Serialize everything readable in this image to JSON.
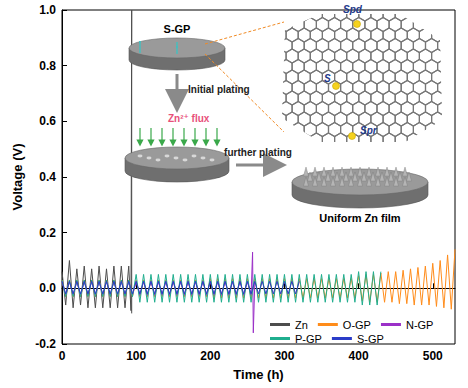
{
  "chart_data": {
    "type": "line",
    "x_label": "Time (h)",
    "y_label": "Voltage (V)",
    "xlim": [
      0,
      530
    ],
    "xticks": [
      0,
      100,
      200,
      300,
      400,
      500
    ],
    "ylim": [
      -0.2,
      1.0
    ],
    "yticks": [
      -0.2,
      {
        "value": 0,
        "label": "0.0"
      },
      0.2,
      0.4,
      0.6,
      0.8,
      {
        "value": 1,
        "label": "1.0"
      }
    ],
    "grid": false,
    "legend": "bottom-right",
    "annotations": [
      "S-GP",
      "Spd",
      "S",
      "Spr",
      "Initial plating",
      "Zn²⁺ flux",
      "further plating",
      "Uniform Zn film"
    ],
    "series": [
      {
        "name": "Zn",
        "color": "#4d4d4d",
        "x": [
          0,
          5,
          10,
          15,
          20,
          25,
          30,
          35,
          40,
          45,
          50,
          55,
          60,
          65,
          70,
          75,
          80,
          85,
          90,
          93,
          94,
          94
        ],
        "values": [
          0.06,
          -0.06,
          0.1,
          -0.07,
          0.07,
          -0.06,
          0.08,
          -0.07,
          0.07,
          -0.07,
          0.08,
          -0.07,
          0.07,
          -0.07,
          0.08,
          -0.07,
          0.08,
          -0.07,
          0.08,
          -0.08,
          1.0,
          -0.09
        ]
      },
      {
        "name": "O-GP",
        "color": "#ff8c1a",
        "x": [
          0,
          5,
          10,
          15,
          20,
          25,
          30,
          35,
          40,
          45,
          50,
          55,
          60,
          65,
          70,
          75,
          80,
          85,
          90,
          95,
          100,
          105,
          110,
          115,
          120,
          125,
          130,
          135,
          140,
          145,
          150,
          155,
          160,
          165,
          170,
          175,
          180,
          185,
          190,
          195,
          200,
          205,
          210,
          215,
          220,
          225,
          230,
          235,
          240,
          245,
          250,
          255,
          260,
          265,
          270,
          275,
          280,
          285,
          290,
          295,
          300,
          305,
          310,
          315,
          320,
          325,
          330,
          335,
          340,
          345,
          350,
          355,
          360,
          365,
          370,
          375,
          380,
          385,
          390,
          395,
          400,
          405,
          410,
          415,
          420,
          425,
          430,
          435,
          440,
          445,
          450,
          455,
          460,
          465,
          470,
          475,
          480,
          485,
          490,
          495,
          500,
          505,
          510,
          515,
          520,
          525,
          530
        ],
        "values": [
          0.03,
          -0.03,
          0.03,
          -0.03,
          0.03,
          -0.03,
          0.03,
          -0.03,
          0.03,
          -0.03,
          0.03,
          -0.03,
          0.03,
          -0.03,
          0.03,
          -0.03,
          0.03,
          -0.03,
          0.03,
          -0.03,
          0.03,
          -0.03,
          0.03,
          -0.03,
          0.03,
          -0.03,
          0.03,
          -0.03,
          0.03,
          -0.03,
          0.03,
          -0.03,
          0.03,
          -0.03,
          0.03,
          -0.03,
          0.03,
          -0.03,
          0.03,
          -0.03,
          0.035,
          -0.035,
          0.035,
          -0.035,
          0.035,
          -0.035,
          0.035,
          -0.035,
          0.035,
          -0.035,
          0.035,
          -0.035,
          0.035,
          -0.035,
          0.035,
          -0.035,
          0.035,
          -0.035,
          0.035,
          -0.035,
          0.035,
          -0.035,
          0.035,
          -0.035,
          0.035,
          -0.035,
          0.035,
          -0.035,
          0.035,
          -0.035,
          0.035,
          -0.035,
          0.035,
          -0.035,
          0.035,
          -0.035,
          0.035,
          -0.035,
          0.035,
          -0.035,
          0.045,
          -0.045,
          0.05,
          -0.05,
          0.05,
          -0.05,
          0.055,
          -0.05,
          0.06,
          -0.05,
          0.06,
          -0.055,
          0.065,
          -0.055,
          0.07,
          -0.06,
          0.075,
          -0.06,
          0.08,
          -0.06,
          0.09,
          -0.065,
          0.1,
          -0.07,
          0.12,
          -0.075,
          0.14
        ]
      },
      {
        "name": "N-GP",
        "color": "#9b30c8",
        "x": [
          0,
          5,
          10,
          15,
          20,
          25,
          30,
          35,
          40,
          45,
          50,
          55,
          60,
          65,
          70,
          75,
          80,
          85,
          90,
          95,
          100,
          105,
          110,
          115,
          120,
          125,
          130,
          135,
          140,
          145,
          150,
          155,
          160,
          165,
          170,
          175,
          180,
          185,
          190,
          195,
          200,
          205,
          210,
          215,
          220,
          225,
          230,
          235,
          240,
          245,
          250,
          255,
          257,
          258,
          260
        ],
        "values": [
          0.025,
          -0.025,
          0.025,
          -0.025,
          0.025,
          -0.025,
          0.025,
          -0.025,
          0.025,
          -0.025,
          0.025,
          -0.025,
          0.025,
          -0.025,
          0.025,
          -0.025,
          0.025,
          -0.025,
          0.025,
          -0.025,
          0.025,
          -0.025,
          0.025,
          -0.025,
          0.025,
          -0.025,
          0.025,
          -0.025,
          0.025,
          -0.025,
          0.025,
          -0.025,
          0.025,
          -0.025,
          0.025,
          -0.025,
          0.025,
          -0.025,
          0.025,
          -0.025,
          0.025,
          -0.025,
          0.025,
          -0.025,
          0.025,
          -0.025,
          0.025,
          -0.025,
          0.025,
          -0.025,
          0.025,
          -0.025,
          0.13,
          -0.16,
          0.02
        ]
      },
      {
        "name": "P-GP",
        "color": "#1fae8e",
        "x": [
          0,
          5,
          10,
          15,
          20,
          25,
          30,
          35,
          40,
          45,
          50,
          55,
          60,
          65,
          70,
          75,
          80,
          85,
          90,
          95,
          100,
          105,
          110,
          115,
          120,
          125,
          130,
          135,
          140,
          145,
          150,
          155,
          160,
          165,
          170,
          175,
          180,
          185,
          190,
          195,
          200,
          205,
          210,
          215,
          220,
          225,
          230,
          235,
          240,
          245,
          250,
          255,
          260,
          265,
          270,
          275,
          280,
          285,
          290,
          295,
          300,
          305,
          310,
          315,
          320,
          325,
          330,
          335,
          340,
          345,
          350,
          355,
          360,
          365,
          370,
          375,
          380,
          385,
          390,
          395,
          400,
          405,
          410,
          415,
          420,
          425,
          430
        ],
        "values": [
          0.03,
          -0.03,
          0.03,
          -0.03,
          0.03,
          -0.03,
          0.03,
          -0.03,
          0.03,
          -0.03,
          0.03,
          -0.03,
          0.03,
          -0.03,
          0.03,
          -0.03,
          0.03,
          -0.03,
          0.03,
          -0.03,
          0.05,
          -0.05,
          0.05,
          -0.05,
          0.05,
          -0.05,
          0.05,
          -0.05,
          0.05,
          -0.05,
          0.05,
          -0.05,
          0.05,
          -0.05,
          0.05,
          -0.05,
          0.05,
          -0.05,
          0.05,
          -0.05,
          0.05,
          -0.05,
          0.05,
          -0.05,
          0.05,
          -0.05,
          0.05,
          -0.05,
          0.05,
          -0.05,
          0.05,
          -0.05,
          0.05,
          -0.05,
          0.05,
          -0.05,
          0.05,
          -0.05,
          0.05,
          -0.05,
          0.05,
          -0.05,
          0.05,
          -0.05,
          0.05,
          -0.05,
          0.05,
          -0.05,
          0.05,
          -0.05,
          0.05,
          -0.05,
          0.05,
          -0.05,
          0.05,
          -0.05,
          0.05,
          -0.05,
          0.05,
          -0.05,
          0.06,
          -0.06,
          0.06,
          -0.06,
          0.06,
          -0.06,
          0.06
        ]
      },
      {
        "name": "S-GP",
        "color": "#2a3cc8",
        "x": [
          0,
          5,
          10,
          15,
          20,
          25,
          30,
          35,
          40,
          45,
          50,
          55,
          60,
          65,
          70,
          75,
          80,
          85,
          90,
          95,
          100,
          105,
          110,
          115,
          120,
          125,
          130,
          135,
          140,
          145,
          150,
          155,
          160,
          165,
          170,
          175,
          180,
          185,
          190,
          195,
          200,
          205,
          210,
          215,
          220,
          225,
          230,
          235,
          240,
          245,
          250,
          255,
          260,
          265,
          270,
          275,
          280,
          285,
          290,
          295,
          300,
          305,
          310,
          315,
          320
        ],
        "values": [
          0.025,
          -0.02,
          0.025,
          -0.02,
          0.025,
          -0.02,
          0.025,
          -0.02,
          0.025,
          -0.02,
          0.025,
          -0.02,
          0.025,
          -0.02,
          0.025,
          -0.02,
          0.025,
          -0.02,
          0.025,
          -0.02,
          0.025,
          -0.02,
          0.025,
          -0.02,
          0.025,
          -0.02,
          0.025,
          -0.02,
          0.025,
          -0.02,
          0.025,
          -0.02,
          0.025,
          -0.02,
          0.025,
          -0.02,
          0.025,
          -0.02,
          0.025,
          -0.02,
          0.025,
          -0.02,
          0.025,
          -0.02,
          0.025,
          -0.02,
          0.025,
          -0.02,
          0.025,
          -0.02,
          0.025,
          -0.02,
          0.025,
          -0.02,
          0.025,
          -0.02,
          0.025,
          -0.02,
          0.025,
          -0.02,
          0.025,
          -0.02,
          0.025,
          -0.02,
          0.025
        ]
      }
    ]
  }
}
